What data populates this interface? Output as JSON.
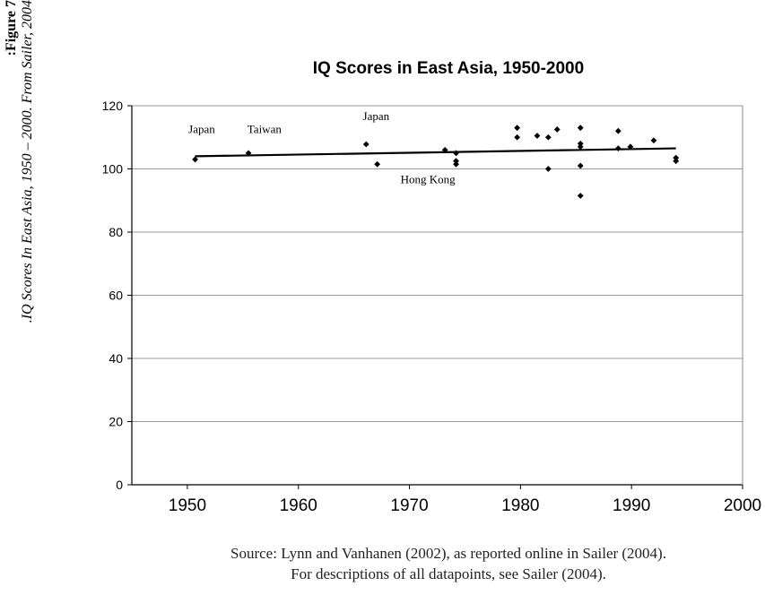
{
  "caption": {
    "label": "Figure 7:",
    "text": "IQ Scores In East Asia, 1950 – 2000. From Sailer, 2004."
  },
  "source": {
    "line1": "Source: Lynn and Vanhanen (2002), as reported online in Sailer (2004).",
    "line2": "For descriptions of all datapoints, see Sailer (2004)."
  },
  "chart_data": {
    "type": "scatter",
    "title": "IQ Scores in East Asia, 1950-2000",
    "xlabel": "",
    "ylabel": "",
    "xlim": [
      1945,
      2000
    ],
    "ylim": [
      0,
      120
    ],
    "xticks": [
      1950,
      1960,
      1970,
      1980,
      1990,
      2000
    ],
    "yticks": [
      0,
      20,
      40,
      60,
      80,
      100,
      120
    ],
    "grid": "horizontal",
    "legend": "none",
    "colors": {
      "points": "#000000",
      "trend": "#000000",
      "grid": "#999999"
    },
    "points": [
      {
        "x": 1950.7,
        "y": 103
      },
      {
        "x": 1955.5,
        "y": 105
      },
      {
        "x": 1966.1,
        "y": 107.8
      },
      {
        "x": 1967.1,
        "y": 101.5
      },
      {
        "x": 1973.2,
        "y": 106
      },
      {
        "x": 1974.2,
        "y": 105
      },
      {
        "x": 1974.2,
        "y": 102.5
      },
      {
        "x": 1974.2,
        "y": 101.5
      },
      {
        "x": 1979.7,
        "y": 113
      },
      {
        "x": 1979.7,
        "y": 110
      },
      {
        "x": 1981.5,
        "y": 110.5
      },
      {
        "x": 1982.5,
        "y": 110
      },
      {
        "x": 1982.5,
        "y": 100
      },
      {
        "x": 1983.3,
        "y": 112.5
      },
      {
        "x": 1985.4,
        "y": 113
      },
      {
        "x": 1985.4,
        "y": 108
      },
      {
        "x": 1985.4,
        "y": 107
      },
      {
        "x": 1985.4,
        "y": 101
      },
      {
        "x": 1985.4,
        "y": 91.5
      },
      {
        "x": 1988.8,
        "y": 112
      },
      {
        "x": 1988.8,
        "y": 106.5
      },
      {
        "x": 1989.9,
        "y": 107
      },
      {
        "x": 1992.0,
        "y": 109
      },
      {
        "x": 1994.0,
        "y": 103.5
      },
      {
        "x": 1994.0,
        "y": 102.5
      }
    ],
    "trendline": [
      {
        "x": 1950.7,
        "y": 104
      },
      {
        "x": 1994.0,
        "y": 106.5
      }
    ],
    "annotations": [
      {
        "text": "Japan",
        "x": 1950.1,
        "y": 111.3
      },
      {
        "text": "Taiwan",
        "x": 1955.4,
        "y": 111.3
      },
      {
        "text": "Japan",
        "x": 1965.8,
        "y": 115.5
      },
      {
        "text": "Hong Kong",
        "x": 1969.2,
        "y": 95.5
      }
    ]
  }
}
